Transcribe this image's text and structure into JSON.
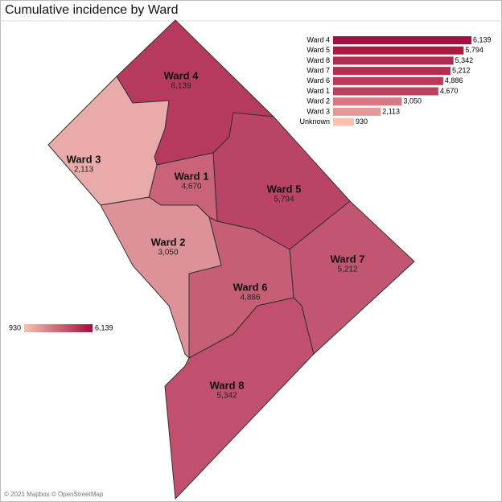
{
  "title": "Cumulative incidence by Ward",
  "map": {
    "wards": [
      {
        "name": "Ward 4",
        "value": 6139,
        "value_label": "6,139"
      },
      {
        "name": "Ward 5",
        "value": 5794,
        "value_label": "5,794"
      },
      {
        "name": "Ward 8",
        "value": 5342,
        "value_label": "5,342"
      },
      {
        "name": "Ward 7",
        "value": 5212,
        "value_label": "5,212"
      },
      {
        "name": "Ward 6",
        "value": 4886,
        "value_label": "4,886"
      },
      {
        "name": "Ward 1",
        "value": 4670,
        "value_label": "4,670"
      },
      {
        "name": "Ward 2",
        "value": 3050,
        "value_label": "3,050"
      },
      {
        "name": "Ward 3",
        "value": 2113,
        "value_label": "2,113"
      }
    ],
    "legend": {
      "min": 930,
      "max": {
        "value": 6139,
        "label": "6,139"
      },
      "colors": [
        "#f7c1b2",
        "#a50f3b"
      ]
    }
  },
  "chart_data": {
    "type": "bar",
    "orientation": "horizontal",
    "categories": [
      "Ward 4",
      "Ward 5",
      "Ward 8",
      "Ward 7",
      "Ward 6",
      "Ward 1",
      "Ward 2",
      "Ward 3",
      "Unknown"
    ],
    "values": [
      6139,
      5794,
      5342,
      5212,
      4886,
      4670,
      3050,
      2113,
      930
    ],
    "value_labels": [
      "6,139",
      "5,794",
      "5,342",
      "5,212",
      "4,886",
      "4,670",
      "3,050",
      "2,113",
      "930"
    ]
  },
  "attribution": "© 2021 Mapbox © OpenStreetMap"
}
